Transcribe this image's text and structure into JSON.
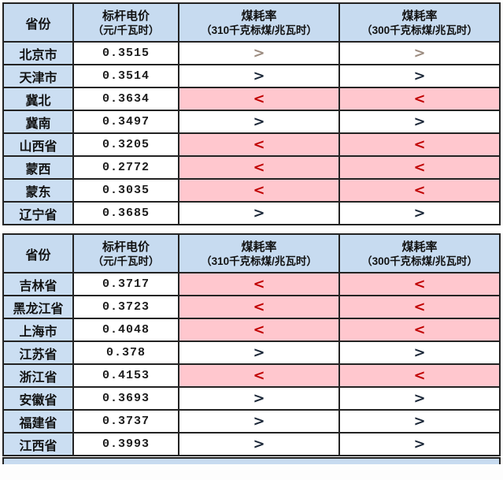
{
  "colors": {
    "header_bg": "#C7DBF0",
    "province_bg": "#CBDEF2",
    "highlight_pink": "#FFC7CE",
    "symbol_red": "#C00000",
    "symbol_dark": "#1b2738",
    "border": "#232323"
  },
  "header": {
    "province": "省份",
    "price_line1": "标杆电价",
    "price_line2": "（元/千瓦时）",
    "coal310_line1": "煤耗率",
    "coal310_line2": "（310千克标煤/兆瓦时）",
    "coal300_line1": "煤耗率",
    "coal300_line2": "（300千克标煤/兆瓦时）"
  },
  "chart_data": {
    "type": "table",
    "columns": [
      "省份",
      "标杆电价（元/千瓦时）",
      "煤耗率（310千克标煤/兆瓦时）",
      "煤耗率（300千克标煤/兆瓦时）"
    ],
    "note": "rows split across two stacked tables; pink rows mark < (below benchmark)"
  },
  "tables": [
    {
      "rows": [
        {
          "province": "北京市",
          "price": "0.3515",
          "sym310": ">",
          "sym300": ">",
          "sym_class": "sym-gt sym-faded"
        },
        {
          "province": "天津市",
          "price": "0.3514",
          "sym310": ">",
          "sym300": ">",
          "sym_class": "sym-gt"
        },
        {
          "province": "冀北",
          "price": "0.3634",
          "sym310": "<",
          "sym300": "<",
          "sym_class": "sym-lt"
        },
        {
          "province": "冀南",
          "price": "0.3497",
          "sym310": ">",
          "sym300": ">",
          "sym_class": "sym-gt"
        },
        {
          "province": "山西省",
          "price": "0.3205",
          "sym310": "<",
          "sym300": "<",
          "sym_class": "sym-lt"
        },
        {
          "province": "蒙西",
          "price": "0.2772",
          "sym310": "<",
          "sym300": "<",
          "sym_class": "sym-lt"
        },
        {
          "province": "蒙东",
          "price": "0.3035",
          "sym310": "<",
          "sym300": "<",
          "sym_class": "sym-lt"
        },
        {
          "province": "辽宁省",
          "price": "0.3685",
          "sym310": ">",
          "sym300": ">",
          "sym_class": "sym-gt"
        }
      ]
    },
    {
      "rows": [
        {
          "province": "吉林省",
          "price": "0.3717",
          "sym310": "<",
          "sym300": "<",
          "sym_class": "sym-lt"
        },
        {
          "province": "黑龙江省",
          "price": "0.3723",
          "sym310": "<",
          "sym300": "<",
          "sym_class": "sym-lt"
        },
        {
          "province": "上海市",
          "price": "0.4048",
          "sym310": "<",
          "sym300": "<",
          "sym_class": "sym-lt"
        },
        {
          "province": "江苏省",
          "price": "0.378",
          "sym310": ">",
          "sym300": ">",
          "sym_class": "sym-gt"
        },
        {
          "province": "浙江省",
          "price": "0.4153",
          "sym310": "<",
          "sym300": "<",
          "sym_class": "sym-lt"
        },
        {
          "province": "安徽省",
          "price": "0.3693",
          "sym310": ">",
          "sym300": ">",
          "sym_class": "sym-gt"
        },
        {
          "province": "福建省",
          "price": "0.3737",
          "sym310": ">",
          "sym300": ">",
          "sym_class": "sym-gt"
        },
        {
          "province": "江西省",
          "price": "0.3993",
          "sym310": ">",
          "sym300": ">",
          "sym_class": "sym-gt"
        }
      ]
    }
  ]
}
